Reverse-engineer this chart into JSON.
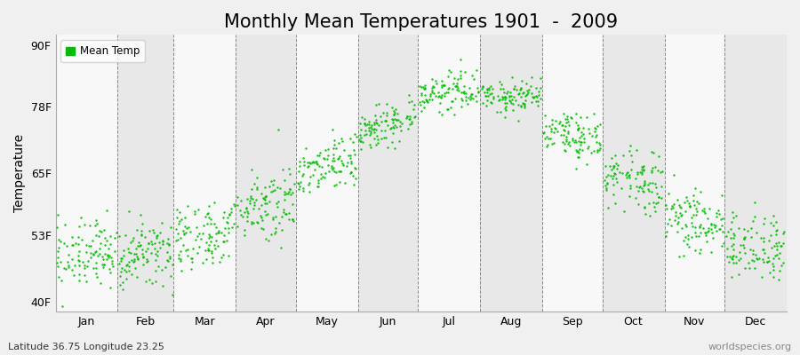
{
  "title": "Monthly Mean Temperatures 1901  -  2009",
  "ylabel": "Temperature",
  "bottom_left_label": "Latitude 36.75 Longitude 23.25",
  "bottom_right_label": "worldspecies.org",
  "legend_label": "Mean Temp",
  "ytick_labels": [
    "40F",
    "53F",
    "65F",
    "78F",
    "90F"
  ],
  "ytick_values": [
    40,
    53,
    65,
    78,
    90
  ],
  "ylim": [
    38,
    92
  ],
  "months": [
    "Jan",
    "Feb",
    "Mar",
    "Apr",
    "May",
    "Jun",
    "Jul",
    "Aug",
    "Sep",
    "Oct",
    "Nov",
    "Dec"
  ],
  "month_days": [
    31,
    28,
    31,
    30,
    31,
    30,
    31,
    31,
    30,
    31,
    30,
    31
  ],
  "xlim": [
    0,
    365
  ],
  "dot_color": "#00bb00",
  "background_color": "#f0f0f0",
  "band_color_light": "#f8f8f8",
  "band_color_dark": "#e8e8e8",
  "title_fontsize": 15,
  "axis_label_fontsize": 10,
  "tick_label_fontsize": 9,
  "n_years": 109,
  "monthly_mean_temps": [
    48.5,
    48.0,
    51.5,
    57.5,
    65.0,
    73.5,
    80.5,
    80.5,
    74.0,
    65.5,
    57.0,
    51.5
  ],
  "monthly_std_temps": [
    3.2,
    3.2,
    3.5,
    3.5,
    2.8,
    2.2,
    1.8,
    1.8,
    2.5,
    3.0,
    3.2,
    3.2
  ],
  "monthly_trend": [
    1.5,
    2.0,
    3.0,
    3.5,
    3.0,
    2.5,
    1.0,
    -1.0,
    -3.5,
    -3.0,
    -2.5,
    -1.5
  ]
}
